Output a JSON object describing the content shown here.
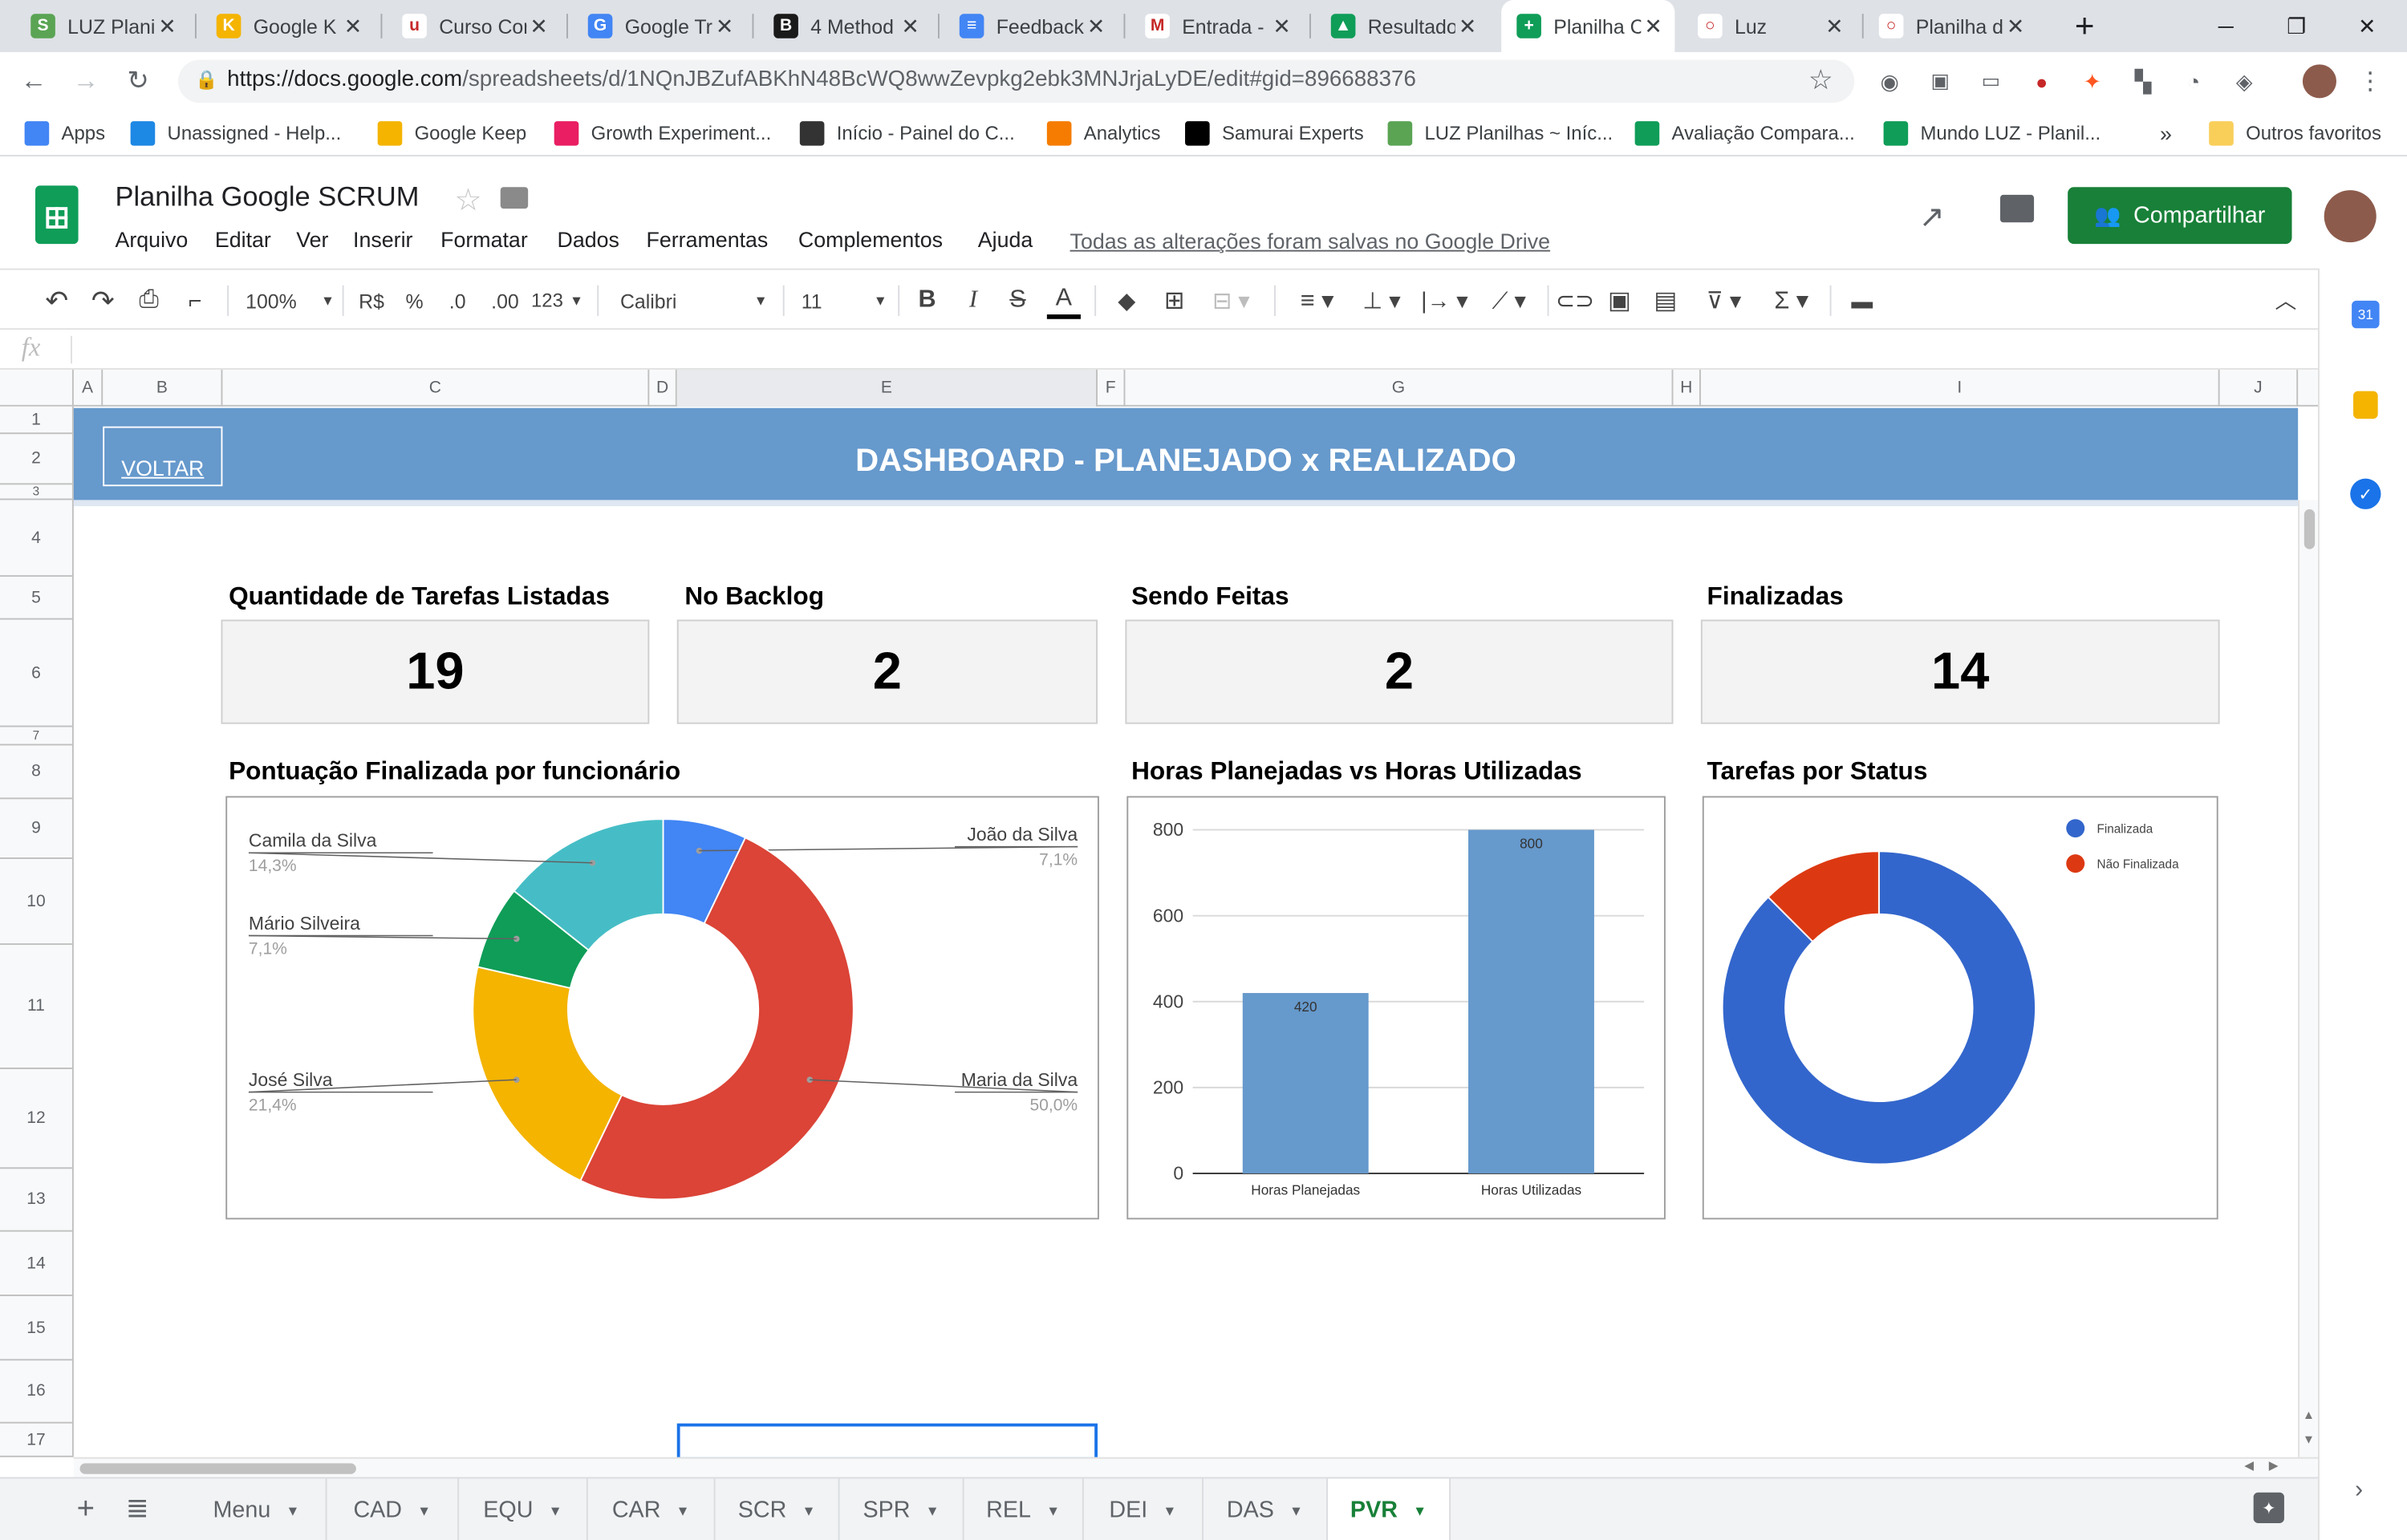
{
  "browser": {
    "tabs": [
      {
        "title": "LUZ Planil",
        "icon_color": "#5aa454",
        "icon": "S"
      },
      {
        "title": "Google K",
        "icon_color": "#f4b400",
        "icon": "K"
      },
      {
        "title": "Curso Cor",
        "icon_color": "#ffffff",
        "icon": "u"
      },
      {
        "title": "Google Tr",
        "icon_color": "#4285f4",
        "icon": "G"
      },
      {
        "title": "4 Method",
        "icon_color": "#1a1a1a",
        "icon": "B"
      },
      {
        "title": "Feedback",
        "icon_color": "#4285f4",
        "icon": "≡"
      },
      {
        "title": "Entrada -",
        "icon_color": "#ffffff",
        "icon": "M"
      },
      {
        "title": "Resultado",
        "icon_color": "#0f9d58",
        "icon": "▲"
      },
      {
        "title": "Planilha C",
        "icon_color": "#0f9d58",
        "icon": "+"
      },
      {
        "title": "Luz",
        "icon_color": "#ffffff",
        "icon": "○"
      },
      {
        "title": "Planilha d",
        "icon_color": "#ffffff",
        "icon": "○"
      }
    ],
    "url_host": "https://docs.google.com",
    "url_path": "/spreadsheets/d/1NQnJBZufABKhN48BcWQ8wwZevpkg2ebk3MNJrjaLyDE/edit#gid=896688376",
    "bookmarks": [
      {
        "label": "Apps",
        "icon_color": "#4285f4"
      },
      {
        "label": "Unassigned - Help...",
        "icon_color": "#1e88e5"
      },
      {
        "label": "Google Keep",
        "icon_color": "#f4b400"
      },
      {
        "label": "Growth Experiment...",
        "icon_color": "#e91e63"
      },
      {
        "label": "Início - Painel do C...",
        "icon_color": "#333333"
      },
      {
        "label": "Analytics",
        "icon_color": "#f57c00"
      },
      {
        "label": "Samurai Experts",
        "icon_color": "#000000"
      },
      {
        "label": "LUZ Planilhas ~ Iníc...",
        "icon_color": "#5aa454"
      },
      {
        "label": "Avaliação Compara...",
        "icon_color": "#0f9d58"
      },
      {
        "label": "Mundo LUZ - Planil...",
        "icon_color": "#0f9d58"
      }
    ],
    "more_bookmarks": "»",
    "other_bookmarks": "Outros favoritos"
  },
  "sheets": {
    "doc_title": "Planilha Google SCRUM",
    "menu": [
      "Arquivo",
      "Editar",
      "Ver",
      "Inserir",
      "Formatar",
      "Dados",
      "Ferramentas",
      "Complementos",
      "Ajuda"
    ],
    "saved_msg": "Todas as alterações foram salvas no Google Drive",
    "share_label": "Compartilhar",
    "toolbar": {
      "zoom": "100%",
      "currency": "R$",
      "percent": "%",
      "dec_less": ".0",
      "dec_more": ".00",
      "format_more": "123",
      "font": "Calibri",
      "font_size": "11",
      "bold": "B",
      "italic": "I",
      "strike": "S",
      "text_color": "A"
    },
    "fx": "fx",
    "columns": [
      "A",
      "B",
      "C",
      "D",
      "E",
      "F",
      "G",
      "H",
      "I",
      "J"
    ],
    "rows": [
      "1",
      "2",
      "3",
      "4",
      "5",
      "6",
      "7",
      "8",
      "9",
      "10",
      "11",
      "12",
      "13",
      "14",
      "15",
      "16",
      "17"
    ],
    "sheet_tabs": [
      "Menu",
      "CAD",
      "EQU",
      "CAR",
      "SCR",
      "SPR",
      "REL",
      "DEI",
      "DAS",
      "PVR"
    ],
    "active_tab": "PVR"
  },
  "dashboard": {
    "back_label": "VOLTAR",
    "title": "DASHBOARD - PLANEJADO x REALIZADO",
    "kpis": [
      {
        "label": "Quantidade de Tarefas Listadas",
        "value": "19"
      },
      {
        "label": "No Backlog",
        "value": "2"
      },
      {
        "label": "Sendo Feitas",
        "value": "2"
      },
      {
        "label": "Finalizadas",
        "value": "14"
      }
    ]
  },
  "chart_data": [
    {
      "type": "pie",
      "title": "Pontuação Finalizada por funcionário",
      "donut": true,
      "labels": [
        "João da Silva",
        "Maria da Silva",
        "José Silva",
        "Mário Silveira",
        "Camila da Silva"
      ],
      "values": [
        7.1,
        50.0,
        21.4,
        7.1,
        14.3
      ],
      "value_labels": [
        "7,1%",
        "50,0%",
        "21,4%",
        "7,1%",
        "14,3%"
      ],
      "colors": [
        "#4285f4",
        "#db4437",
        "#f4b400",
        "#0f9d58",
        "#46bdc6"
      ]
    },
    {
      "type": "bar",
      "title": "Horas Planejadas vs Horas Utilizadas",
      "categories": [
        "Horas Planejadas",
        "Horas Utilizadas"
      ],
      "values": [
        420,
        800
      ],
      "ylim": [
        0,
        800
      ],
      "yticks": [
        0,
        200,
        400,
        600,
        800
      ],
      "color": "#6699cc",
      "grid": true
    },
    {
      "type": "pie",
      "title": "Tarefas por Status",
      "donut": true,
      "labels": [
        "Finalizada",
        "Não Finalizada"
      ],
      "values": [
        14,
        2
      ],
      "colors": [
        "#3366cc",
        "#dc3912"
      ],
      "legend": "top-right"
    }
  ]
}
